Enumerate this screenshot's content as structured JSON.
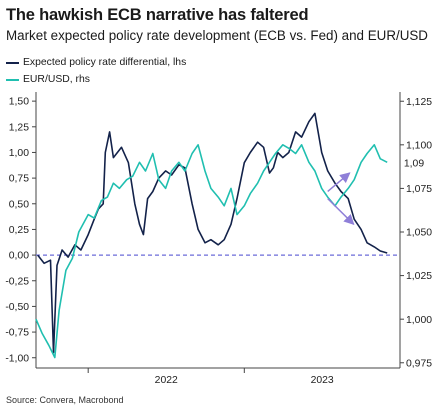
{
  "title": "The hawkish ECB narrative has faltered",
  "subtitle": "Market expected policy rate development (ECB vs. Fed) and EUR/USD",
  "source": "Source: Convera, Macrobond",
  "colors": {
    "spread": "#13224a",
    "eurusd": "#20bfb0",
    "zero_line": "#6b6bd8",
    "arrow": "#8f7fd8",
    "axis": "#444444"
  },
  "chart_data": {
    "type": "line",
    "title": "The hawkish ECB narrative has faltered",
    "subtitle": "Market expected policy rate development (ECB vs. Fed) and EUR/USD",
    "x_tick_labels": [
      "2022",
      "2023"
    ],
    "xlim": [
      "2021-09-01",
      "2023-12-31"
    ],
    "y_left": {
      "lim": [
        -1.1,
        1.55
      ],
      "ticks": [
        "1,50",
        "1,25",
        "1,00",
        "0,75",
        "0,50",
        "0,25",
        "0,00",
        "-0,25",
        "-0,50",
        "-0,75",
        "-1,00"
      ],
      "tick_values": [
        1.5,
        1.25,
        1.0,
        0.75,
        0.5,
        0.25,
        0.0,
        -0.25,
        -0.5,
        -0.75,
        -1.0
      ]
    },
    "y_right": {
      "lim": [
        0.972,
        1.128
      ],
      "ticks": [
        "1,125",
        "1,100",
        "1,075",
        "1,050",
        "1,025",
        "1,000",
        "0,975"
      ],
      "tick_values": [
        1.125,
        1.1,
        1.075,
        1.05,
        1.025,
        1.0,
        0.975
      ]
    },
    "annotation": "1,09",
    "zero_reference_line": true,
    "series": [
      {
        "name": "Expected policy rate differential, lhs",
        "axis": "left",
        "x": [
          "2021-09-05",
          "2021-09-20",
          "2021-10-05",
          "2021-10-12",
          "2021-10-20",
          "2021-11-01",
          "2021-11-15",
          "2021-12-01",
          "2021-12-15",
          "2022-01-01",
          "2022-01-15",
          "2022-01-25",
          "2022-02-05",
          "2022-02-10",
          "2022-02-20",
          "2022-03-01",
          "2022-03-20",
          "2022-04-05",
          "2022-04-20",
          "2022-05-01",
          "2022-05-10",
          "2022-05-20",
          "2022-06-01",
          "2022-06-15",
          "2022-07-01",
          "2022-07-15",
          "2022-08-01",
          "2022-08-15",
          "2022-09-01",
          "2022-09-15",
          "2022-10-01",
          "2022-10-15",
          "2022-11-01",
          "2022-11-15",
          "2022-12-01",
          "2022-12-15",
          "2023-01-01",
          "2023-01-15",
          "2023-02-01",
          "2023-02-15",
          "2023-03-01",
          "2023-03-10",
          "2023-03-20",
          "2023-04-01",
          "2023-04-15",
          "2023-05-01",
          "2023-05-15",
          "2023-06-01",
          "2023-06-15",
          "2023-07-01",
          "2023-07-15",
          "2023-08-01",
          "2023-08-15",
          "2023-09-01",
          "2023-09-15",
          "2023-10-01",
          "2023-10-15",
          "2023-11-01",
          "2023-11-15",
          "2023-12-01"
        ],
        "values": [
          0.0,
          -0.08,
          -0.05,
          -0.95,
          -0.1,
          0.05,
          -0.02,
          0.1,
          0.05,
          0.2,
          0.35,
          0.45,
          0.5,
          1.0,
          1.2,
          0.95,
          1.05,
          0.9,
          0.5,
          0.3,
          0.2,
          0.55,
          0.62,
          0.75,
          0.82,
          0.78,
          0.88,
          0.85,
          0.5,
          0.25,
          0.12,
          0.15,
          0.1,
          0.15,
          0.3,
          0.55,
          0.9,
          1.0,
          1.1,
          1.05,
          0.8,
          0.85,
          1.0,
          0.95,
          1.0,
          1.2,
          1.15,
          1.3,
          1.38,
          1.0,
          0.82,
          0.7,
          0.62,
          0.55,
          0.35,
          0.25,
          0.12,
          0.08,
          0.04,
          0.02
        ]
      },
      {
        "name": "EUR/USD, rhs",
        "axis": "right",
        "x": [
          "2021-09-01",
          "2021-09-15",
          "2021-10-01",
          "2021-10-15",
          "2021-10-25",
          "2021-11-10",
          "2021-11-25",
          "2021-12-10",
          "2022-01-01",
          "2022-01-15",
          "2022-02-01",
          "2022-02-15",
          "2022-03-01",
          "2022-03-15",
          "2022-04-01",
          "2022-04-15",
          "2022-05-01",
          "2022-05-15",
          "2022-06-01",
          "2022-06-15",
          "2022-07-01",
          "2022-07-15",
          "2022-08-01",
          "2022-08-15",
          "2022-09-01",
          "2022-09-15",
          "2022-10-01",
          "2022-10-15",
          "2022-11-01",
          "2022-11-15",
          "2022-12-01",
          "2022-12-15",
          "2023-01-01",
          "2023-01-15",
          "2023-02-01",
          "2023-02-15",
          "2023-03-01",
          "2023-03-15",
          "2023-04-01",
          "2023-04-15",
          "2023-05-01",
          "2023-05-15",
          "2023-06-01",
          "2023-06-15",
          "2023-07-01",
          "2023-07-15",
          "2023-08-01",
          "2023-08-15",
          "2023-09-01",
          "2023-09-15",
          "2023-10-01",
          "2023-10-15",
          "2023-11-01",
          "2023-11-15",
          "2023-12-01"
        ],
        "values": [
          1.0,
          0.992,
          0.985,
          0.978,
          1.005,
          1.028,
          1.035,
          1.05,
          1.06,
          1.058,
          1.068,
          1.07,
          1.078,
          1.075,
          1.08,
          1.082,
          1.09,
          1.085,
          1.095,
          1.08,
          1.075,
          1.085,
          1.09,
          1.085,
          1.095,
          1.1,
          1.085,
          1.075,
          1.07,
          1.065,
          1.075,
          1.06,
          1.065,
          1.072,
          1.078,
          1.085,
          1.09,
          1.095,
          1.1,
          1.098,
          1.095,
          1.1,
          1.09,
          1.085,
          1.075,
          1.07,
          1.065,
          1.07,
          1.075,
          1.08,
          1.09,
          1.095,
          1.1,
          1.092,
          1.09
        ]
      }
    ]
  }
}
